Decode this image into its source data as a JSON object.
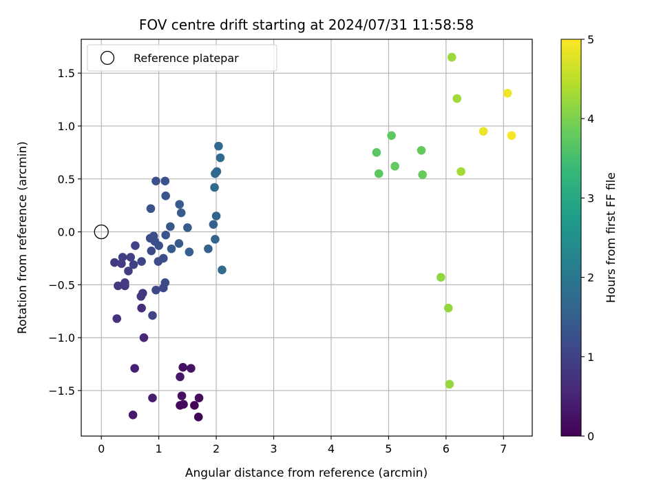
{
  "chart_data": {
    "type": "scatter",
    "title": "FOV centre drift starting at 2024/07/31 11:58:58",
    "xlabel": "Angular distance from reference (arcmin)",
    "ylabel": "Rotation from reference (arcmin)",
    "xlim": [
      -0.35,
      7.5
    ],
    "ylim": [
      -1.93,
      1.82
    ],
    "xticks": [
      0,
      1,
      2,
      3,
      4,
      5,
      6,
      7
    ],
    "xtick_labels": [
      "0",
      "1",
      "2",
      "3",
      "4",
      "5",
      "6",
      "7"
    ],
    "yticks": [
      -1.5,
      -1.0,
      -0.5,
      0.0,
      0.5,
      1.0,
      1.5
    ],
    "ytick_labels": [
      "−1.5",
      "−1.0",
      "−0.5",
      "0.0",
      "0.5",
      "1.0",
      "1.5"
    ],
    "grid": true,
    "legend": {
      "position": "upper-left",
      "entries": [
        {
          "label": "Reference platepar",
          "marker": "open-circle",
          "color": "#000000"
        }
      ]
    },
    "reference_point": {
      "x": 0.0,
      "y": 0.0
    },
    "colorbar": {
      "label": "Hours from first FF file",
      "range": [
        0,
        5
      ],
      "ticks": [
        0,
        1,
        2,
        3,
        4,
        5
      ],
      "tick_labels": [
        "0",
        "1",
        "2",
        "3",
        "4",
        "5"
      ],
      "colormap": "viridis",
      "stops": [
        "#440154",
        "#482878",
        "#3e4989",
        "#31688e",
        "#26828e",
        "#1f9e89",
        "#35b779",
        "#6ece58",
        "#b5de2b",
        "#fde725"
      ]
    },
    "points": [
      {
        "x": 1.69,
        "y": -1.75,
        "hours": 0.02
      },
      {
        "x": 1.62,
        "y": -1.64,
        "hours": 0.06
      },
      {
        "x": 1.43,
        "y": -1.63,
        "hours": 0.08
      },
      {
        "x": 1.37,
        "y": -1.64,
        "hours": 0.12
      },
      {
        "x": 1.7,
        "y": -1.57,
        "hours": 0.15
      },
      {
        "x": 1.4,
        "y": -1.55,
        "hours": 0.18
      },
      {
        "x": 1.42,
        "y": -1.28,
        "hours": 0.22
      },
      {
        "x": 1.56,
        "y": -1.29,
        "hours": 0.26
      },
      {
        "x": 1.37,
        "y": -1.37,
        "hours": 0.3
      },
      {
        "x": 0.55,
        "y": -1.73,
        "hours": 0.35
      },
      {
        "x": 0.89,
        "y": -1.57,
        "hours": 0.4
      },
      {
        "x": 0.58,
        "y": -1.29,
        "hours": 0.45
      },
      {
        "x": 0.74,
        "y": -1.0,
        "hours": 0.55
      },
      {
        "x": 0.7,
        "y": -0.72,
        "hours": 0.62
      },
      {
        "x": 0.27,
        "y": -0.82,
        "hours": 0.7
      },
      {
        "x": 0.72,
        "y": -0.58,
        "hours": 0.78
      },
      {
        "x": 0.69,
        "y": -0.61,
        "hours": 0.8
      },
      {
        "x": 0.29,
        "y": -0.51,
        "hours": 0.82
      },
      {
        "x": 0.41,
        "y": -0.51,
        "hours": 0.84
      },
      {
        "x": 0.41,
        "y": -0.48,
        "hours": 0.86
      },
      {
        "x": 0.23,
        "y": -0.29,
        "hours": 0.88
      },
      {
        "x": 0.35,
        "y": -0.3,
        "hours": 0.9
      },
      {
        "x": 0.47,
        "y": -0.37,
        "hours": 0.92
      },
      {
        "x": 0.37,
        "y": -0.24,
        "hours": 0.94
      },
      {
        "x": 0.51,
        "y": -0.24,
        "hours": 0.96
      },
      {
        "x": 0.56,
        "y": -0.31,
        "hours": 0.98
      },
      {
        "x": 0.59,
        "y": -0.13,
        "hours": 1.0
      },
      {
        "x": 0.7,
        "y": -0.28,
        "hours": 1.02
      },
      {
        "x": 0.89,
        "y": -0.79,
        "hours": 1.04
      },
      {
        "x": 0.95,
        "y": -0.55,
        "hours": 1.08
      },
      {
        "x": 1.08,
        "y": -0.53,
        "hours": 1.1
      },
      {
        "x": 1.11,
        "y": -0.48,
        "hours": 1.12
      },
      {
        "x": 0.87,
        "y": -0.18,
        "hours": 1.14
      },
      {
        "x": 0.99,
        "y": -0.28,
        "hours": 1.16
      },
      {
        "x": 1.08,
        "y": -0.25,
        "hours": 1.18
      },
      {
        "x": 0.85,
        "y": -0.06,
        "hours": 1.2
      },
      {
        "x": 0.91,
        "y": -0.04,
        "hours": 1.21
      },
      {
        "x": 0.93,
        "y": -0.09,
        "hours": 1.22
      },
      {
        "x": 1.0,
        "y": -0.13,
        "hours": 1.24
      },
      {
        "x": 0.95,
        "y": 0.48,
        "hours": 1.26
      },
      {
        "x": 1.11,
        "y": 0.48,
        "hours": 1.28
      },
      {
        "x": 0.86,
        "y": 0.22,
        "hours": 1.3
      },
      {
        "x": 1.12,
        "y": 0.34,
        "hours": 1.32
      },
      {
        "x": 1.12,
        "y": -0.03,
        "hours": 1.35
      },
      {
        "x": 1.2,
        "y": 0.05,
        "hours": 1.38
      },
      {
        "x": 1.22,
        "y": -0.16,
        "hours": 1.4
      },
      {
        "x": 1.35,
        "y": -0.11,
        "hours": 1.42
      },
      {
        "x": 1.36,
        "y": 0.26,
        "hours": 1.44
      },
      {
        "x": 1.39,
        "y": 0.18,
        "hours": 1.46
      },
      {
        "x": 1.5,
        "y": 0.04,
        "hours": 1.48
      },
      {
        "x": 1.53,
        "y": -0.19,
        "hours": 1.5
      },
      {
        "x": 1.86,
        "y": -0.16,
        "hours": 1.55
      },
      {
        "x": 1.95,
        "y": 0.07,
        "hours": 1.58
      },
      {
        "x": 1.98,
        "y": -0.07,
        "hours": 1.6
      },
      {
        "x": 2.0,
        "y": 0.15,
        "hours": 1.62
      },
      {
        "x": 1.97,
        "y": 0.42,
        "hours": 1.64
      },
      {
        "x": 1.98,
        "y": 0.55,
        "hours": 1.66
      },
      {
        "x": 2.01,
        "y": 0.57,
        "hours": 1.68
      },
      {
        "x": 2.04,
        "y": 0.81,
        "hours": 1.7
      },
      {
        "x": 2.07,
        "y": 0.7,
        "hours": 1.72
      },
      {
        "x": 2.1,
        "y": -0.36,
        "hours": 1.75
      },
      {
        "x": 4.79,
        "y": 0.75,
        "hours": 3.7
      },
      {
        "x": 4.83,
        "y": 0.55,
        "hours": 3.72
      },
      {
        "x": 5.05,
        "y": 0.91,
        "hours": 3.75
      },
      {
        "x": 5.11,
        "y": 0.62,
        "hours": 3.78
      },
      {
        "x": 5.57,
        "y": 0.77,
        "hours": 3.8
      },
      {
        "x": 5.59,
        "y": 0.54,
        "hours": 3.82
      },
      {
        "x": 5.91,
        "y": -0.43,
        "hours": 4.15
      },
      {
        "x": 6.04,
        "y": -0.72,
        "hours": 4.18
      },
      {
        "x": 6.06,
        "y": -1.44,
        "hours": 4.2
      },
      {
        "x": 6.1,
        "y": 1.65,
        "hours": 4.25
      },
      {
        "x": 6.19,
        "y": 1.26,
        "hours": 4.28
      },
      {
        "x": 6.26,
        "y": 0.57,
        "hours": 4.3
      },
      {
        "x": 6.65,
        "y": 0.95,
        "hours": 4.85
      },
      {
        "x": 7.07,
        "y": 1.31,
        "hours": 4.9
      },
      {
        "x": 7.14,
        "y": 0.91,
        "hours": 4.95
      }
    ]
  }
}
